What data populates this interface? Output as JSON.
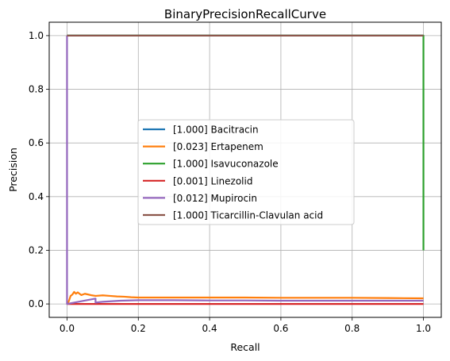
{
  "chart_data": {
    "type": "line",
    "title": "BinaryPrecisionRecallCurve",
    "xlabel": "Recall",
    "ylabel": "Precision",
    "xlim": [
      -0.05,
      1.05
    ],
    "ylim": [
      -0.05,
      1.05
    ],
    "xticks": [
      "0.0",
      "0.2",
      "0.4",
      "0.6",
      "0.8",
      "1.0"
    ],
    "yticks": [
      "0.0",
      "0.2",
      "0.4",
      "0.6",
      "0.8",
      "1.0"
    ],
    "grid": true,
    "legend_position": "center",
    "series": [
      {
        "name": "[1.000] Bacitracin",
        "color": "#1f77b4",
        "points": [
          [
            0.0,
            1.0
          ],
          [
            1.0,
            1.0
          ]
        ]
      },
      {
        "name": "[0.023] Ertapenem",
        "color": "#ff7f0e",
        "points": [
          [
            0.0,
            0.0
          ],
          [
            0.005,
            0.01
          ],
          [
            0.01,
            0.03
          ],
          [
            0.015,
            0.035
          ],
          [
            0.02,
            0.045
          ],
          [
            0.025,
            0.038
          ],
          [
            0.03,
            0.043
          ],
          [
            0.04,
            0.033
          ],
          [
            0.05,
            0.038
          ],
          [
            0.06,
            0.035
          ],
          [
            0.07,
            0.032
          ],
          [
            0.08,
            0.03
          ],
          [
            0.1,
            0.032
          ],
          [
            0.12,
            0.03
          ],
          [
            0.14,
            0.028
          ],
          [
            0.16,
            0.027
          ],
          [
            0.18,
            0.025
          ],
          [
            0.2,
            0.024
          ],
          [
            0.25,
            0.024
          ],
          [
            0.3,
            0.024
          ],
          [
            0.4,
            0.024
          ],
          [
            0.5,
            0.024
          ],
          [
            0.6,
            0.023
          ],
          [
            0.7,
            0.023
          ],
          [
            0.8,
            0.023
          ],
          [
            0.9,
            0.022
          ],
          [
            1.0,
            0.021
          ]
        ]
      },
      {
        "name": "[1.000] Isavuconazole",
        "color": "#2ca02c",
        "points": [
          [
            0.0,
            1.0
          ],
          [
            1.0,
            1.0
          ],
          [
            1.0,
            0.2
          ]
        ]
      },
      {
        "name": "[0.001] Linezolid",
        "color": "#d62728",
        "points": [
          [
            0.0,
            0.0
          ],
          [
            1.0,
            0.0
          ]
        ]
      },
      {
        "name": "[0.012] Mupirocin",
        "color": "#9467bd",
        "points": [
          [
            0.0,
            1.0
          ],
          [
            0.0,
            0.0
          ],
          [
            0.04,
            0.01
          ],
          [
            0.08,
            0.02
          ],
          [
            0.08,
            0.005
          ],
          [
            0.1,
            0.008
          ],
          [
            0.15,
            0.012
          ],
          [
            0.2,
            0.014
          ],
          [
            0.3,
            0.014
          ],
          [
            0.4,
            0.013
          ],
          [
            0.5,
            0.013
          ],
          [
            0.6,
            0.012
          ],
          [
            0.7,
            0.012
          ],
          [
            0.8,
            0.012
          ],
          [
            0.9,
            0.012
          ],
          [
            1.0,
            0.012
          ]
        ]
      },
      {
        "name": "[1.000] Ticarcillin-Clavulan acid",
        "color": "#8c564b",
        "points": [
          [
            0.0,
            1.0
          ],
          [
            1.0,
            1.0
          ]
        ]
      }
    ]
  }
}
